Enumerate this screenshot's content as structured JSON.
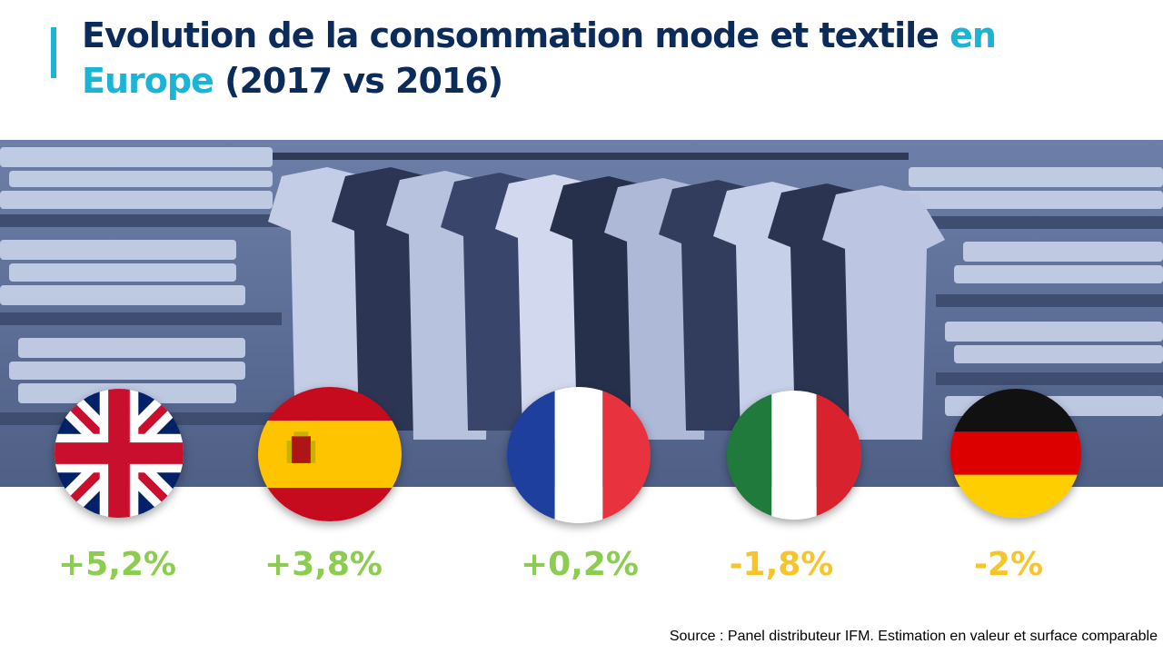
{
  "title": {
    "part1": "Evolution de la consommation mode et textile ",
    "highlight": "en Europe",
    "part2": " (2017 vs 2016)"
  },
  "colors": {
    "title": "#0b2b5a",
    "accent": "#1bb3d6",
    "positive": "#8ccc4f",
    "negative": "#f6c52e"
  },
  "countries": [
    {
      "flag": "uk-flag-icon",
      "value": "+5,2%",
      "color": "#8ccc4f"
    },
    {
      "flag": "spain-flag-icon",
      "value": "+3,8%",
      "color": "#8ccc4f"
    },
    {
      "flag": "france-flag-icon",
      "value": "+0,2%",
      "color": "#8ccc4f"
    },
    {
      "flag": "italy-flag-icon",
      "value": "-1,8%",
      "color": "#f6c52e"
    },
    {
      "flag": "germany-flag-icon",
      "value": "-2%",
      "color": "#f6c52e"
    }
  ],
  "source": "Source : Panel distributeur IFM. Estimation en valeur et surface comparable"
}
